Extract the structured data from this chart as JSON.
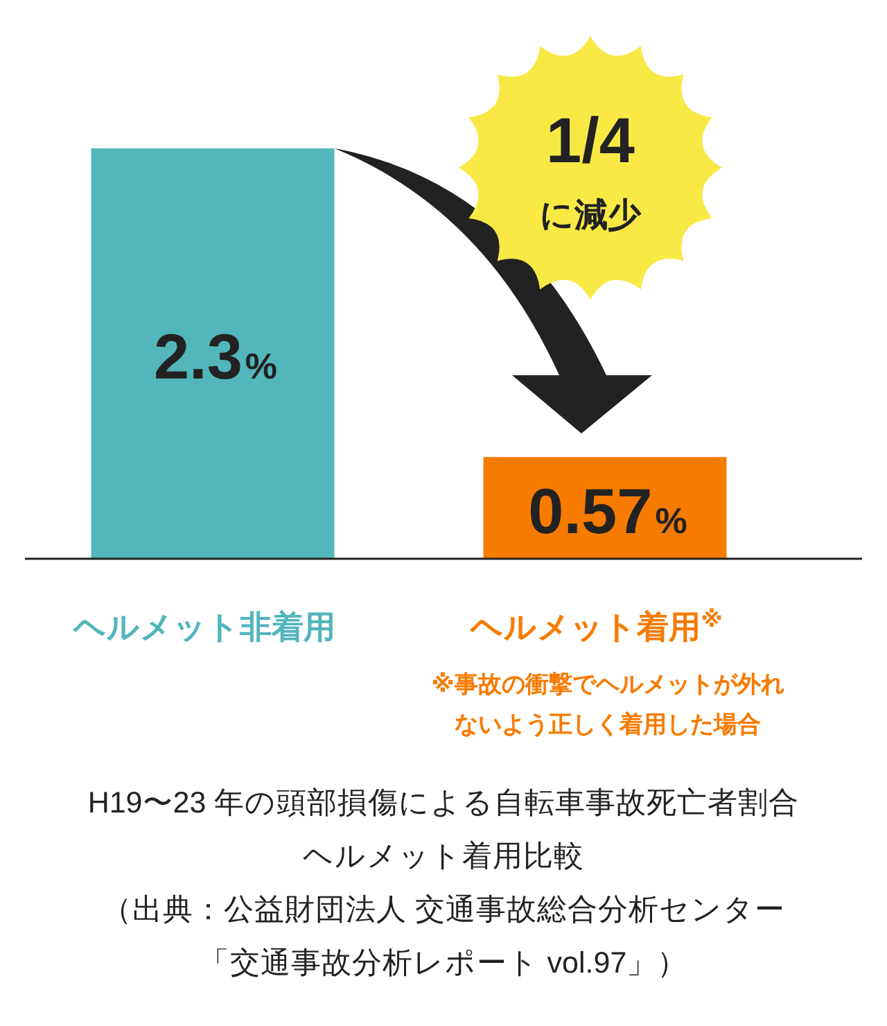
{
  "chart_data": {
    "type": "bar",
    "categories": [
      "ヘルメット非着用",
      "ヘルメット着用$^{※}$"
    ],
    "values": [
      2.3,
      0.57
    ],
    "colors": [
      "#52b6bb",
      "#f77b00"
    ],
    "value_labels": [
      "2.3%",
      "0.57%"
    ],
    "annotations": [
      "1/4\nに減少",
      "※事故の衝撃でヘルメットが外れ",
      "ないよう正しく着用した場合",
      "H19〜23 年の頭部損傷による自転車事故死亡者割合",
      "ヘルメット着用比較",
      "（出典：公益財団法人 交通事故総合分析センター",
      "「交通事故分析レポート vol.97」）"
    ]
  }
}
